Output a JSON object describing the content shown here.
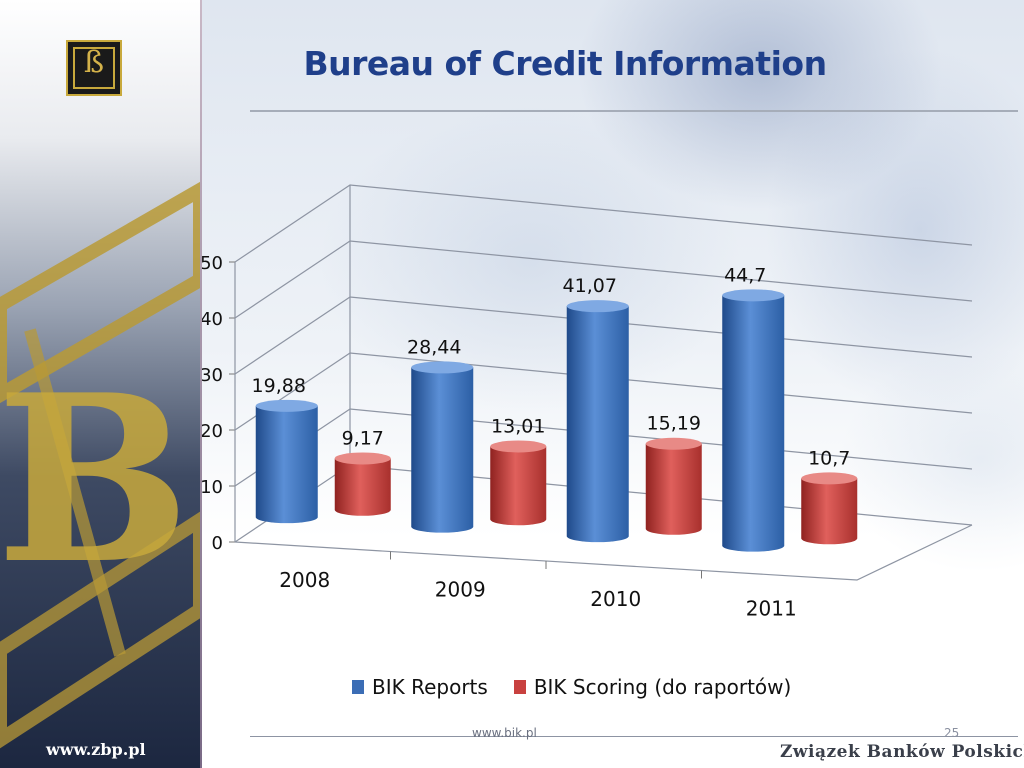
{
  "slide": {
    "title": "Bureau of Credit Information",
    "logo_glyph": "ß",
    "footer_url": "www.bik.pl",
    "page_number": "25",
    "left_url": "www.zbp.pl",
    "org_name": "Związek Banków Polskich"
  },
  "colors": {
    "title": "#1f3f8a",
    "series_reports": "#3b6db5",
    "series_scoring": "#c8413f",
    "gold": "#c8a93c"
  },
  "chart_data": {
    "type": "bar",
    "style": "3d-cylinder",
    "categories": [
      "2008",
      "2009",
      "2010",
      "2011"
    ],
    "series": [
      {
        "name": "BIK Reports",
        "values": [
          19.88,
          28.44,
          41.07,
          44.7
        ],
        "labels": [
          "19,88",
          "28,44",
          "41,07",
          "44,7"
        ]
      },
      {
        "name": "BIK Scoring (do raportów)",
        "values": [
          9.17,
          13.01,
          15.19,
          10.7
        ],
        "labels": [
          "9,17",
          "13,01",
          "15,19",
          "10,7"
        ]
      }
    ],
    "yticks": [
      "0",
      "10",
      "20",
      "30",
      "40",
      "50"
    ],
    "ylim": [
      0,
      50
    ],
    "grid": true,
    "legend_position": "bottom"
  }
}
